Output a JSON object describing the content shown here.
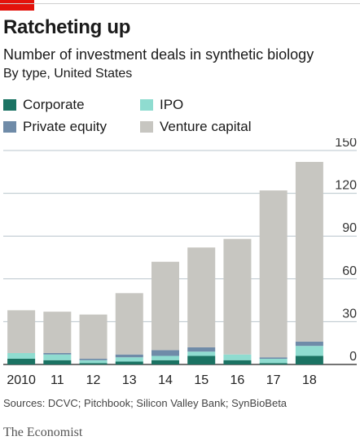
{
  "header": {
    "title": "Ratcheting up",
    "subtitle": "Number of investment deals in synthetic biology",
    "subsubtitle": "By type, United States"
  },
  "legend": [
    {
      "label": "Corporate",
      "color": "#1b7363"
    },
    {
      "label": "IPO",
      "color": "#8fdcd0"
    },
    {
      "label": "Private equity",
      "color": "#6f8ba8"
    },
    {
      "label": "Venture capital",
      "color": "#c7c6c1"
    }
  ],
  "chart_data": {
    "type": "bar",
    "stacked": true,
    "categories": [
      "2010",
      "11",
      "12",
      "13",
      "14",
      "15",
      "16",
      "17",
      "18"
    ],
    "series": [
      {
        "name": "Corporate",
        "color": "#1b7363",
        "values": [
          4,
          3,
          1,
          2,
          3,
          6,
          3,
          1,
          6
        ]
      },
      {
        "name": "IPO",
        "color": "#8fdcd0",
        "values": [
          4,
          4,
          2,
          3,
          3,
          3,
          4,
          3,
          7
        ]
      },
      {
        "name": "Private equity",
        "color": "#6f8ba8",
        "values": [
          0,
          1,
          1,
          2,
          4,
          3,
          0,
          1,
          3
        ]
      },
      {
        "name": "Venture capital",
        "color": "#c7c6c1",
        "values": [
          30,
          29,
          31,
          43,
          62,
          70,
          81,
          117,
          126
        ]
      }
    ],
    "yticks": [
      0,
      30,
      60,
      90,
      120,
      150
    ],
    "ylim": [
      0,
      150
    ],
    "grid": true,
    "y_axis_side": "right",
    "legend_position": "top-left"
  },
  "footer": {
    "source": "Sources: DCVC; Pitchbook; Silicon Valley Bank; SynBioBeta",
    "brand": "The Economist"
  }
}
